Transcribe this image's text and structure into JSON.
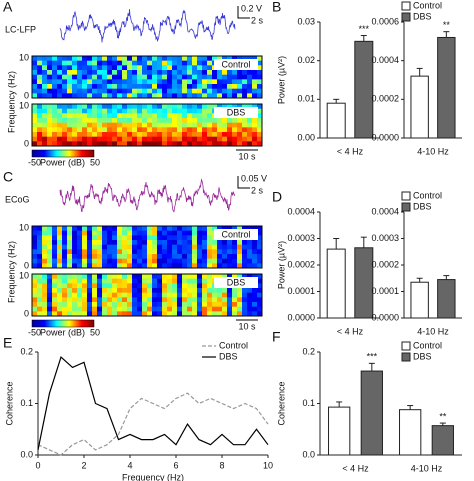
{
  "panel_a": {
    "label": "A",
    "trace_label": "LC-LFP",
    "scale_v": "0.2 V",
    "scale_t": "2 s",
    "ylabel": "Frequency (Hz)",
    "spectrograms": [
      {
        "label": "Control",
        "yticks": [
          "10",
          "0"
        ]
      },
      {
        "label": "DBS",
        "yticks": [
          "10",
          "0"
        ]
      }
    ],
    "colorbar": {
      "label": "Power (dB)",
      "min": "-50",
      "max": "50"
    },
    "time_scale": "10 s"
  },
  "panel_c": {
    "label": "C",
    "trace_label": "ECoG",
    "scale_v": "0.05 V",
    "scale_t": "2 s",
    "ylabel": "Frequency (Hz)",
    "spectrograms": [
      {
        "label": "Control",
        "yticks": [
          "10",
          "0"
        ]
      },
      {
        "label": "DBS",
        "yticks": [
          "10",
          "0"
        ]
      }
    ],
    "colorbar": {
      "label": "Power (dB)",
      "min": "-50",
      "max": "50"
    },
    "time_scale": "10 s"
  },
  "chart_data": [
    {
      "type": "bar",
      "panel": "B",
      "ylabel": "Power (µV²)",
      "categories": [
        "< 4 Hz"
      ],
      "series": [
        {
          "name": "Control",
          "color": "#ffffff",
          "values": [
            0.009
          ],
          "errors": [
            0.001
          ]
        },
        {
          "name": "DBS",
          "color": "#666666",
          "values": [
            0.025
          ],
          "errors": [
            0.0015
          ],
          "significance": [
            "***"
          ]
        }
      ],
      "ylim": [
        0,
        0.03
      ],
      "yticks": [
        {
          "value": 0,
          "label": "0.00"
        },
        0.01,
        0.02,
        0.03
      ]
    },
    {
      "type": "bar",
      "categories": [
        "4-10 Hz"
      ],
      "legend": "upper right",
      "series": [
        {
          "name": "Control",
          "color": "#ffffff",
          "values": [
            0.00032
          ],
          "errors": [
            4e-05
          ]
        },
        {
          "name": "DBS",
          "color": "#666666",
          "values": [
            0.00052
          ],
          "errors": [
            3e-05
          ],
          "significance": [
            "**"
          ]
        }
      ],
      "ylim": [
        0,
        0.0006
      ],
      "yticks": [
        {
          "value": 0,
          "label": "0.0000"
        },
        0.0002,
        0.0004,
        0.0006
      ]
    },
    {
      "type": "bar",
      "panel": "D",
      "ylabel": "Power (µV²)",
      "categories": [
        "< 4 Hz"
      ],
      "series": [
        {
          "name": "Control",
          "color": "#ffffff",
          "values": [
            0.00026
          ],
          "errors": [
            4e-05
          ]
        },
        {
          "name": "DBS",
          "color": "#666666",
          "values": [
            0.000265
          ],
          "errors": [
            4e-05
          ]
        }
      ],
      "ylim": [
        0,
        0.0004
      ],
      "yticks": [
        {
          "value": 0,
          "label": "0.0000"
        },
        0.0001,
        0.0002,
        0.0003,
        0.0004
      ]
    },
    {
      "type": "bar",
      "categories": [
        "4-10 Hz"
      ],
      "legend": "upper right",
      "series": [
        {
          "name": "Control",
          "color": "#ffffff",
          "values": [
            0.000135
          ],
          "errors": [
            1.5e-05
          ]
        },
        {
          "name": "DBS",
          "color": "#666666",
          "values": [
            0.000145
          ],
          "errors": [
            1.5e-05
          ]
        }
      ],
      "ylim": [
        0,
        0.0004
      ],
      "yticks": [
        {
          "value": 0,
          "label": "0.0000"
        },
        0.0001,
        0.0002,
        0.0003,
        0.0004
      ]
    },
    {
      "type": "line",
      "panel": "E",
      "xlabel": "Frequency (Hz)",
      "ylabel": "Coherence",
      "legend": "upper right",
      "x": [
        0,
        0.5,
        1,
        1.5,
        2,
        2.5,
        3,
        3.5,
        4,
        4.5,
        5,
        5.5,
        6,
        6.5,
        7,
        7.5,
        8,
        8.5,
        9,
        9.5,
        10
      ],
      "series": [
        {
          "name": "Control",
          "color": "#999999",
          "dashed": true,
          "values": [
            0.02,
            0.01,
            0.0,
            0.02,
            0.03,
            0.01,
            0.02,
            0.04,
            0.09,
            0.11,
            0.1,
            0.09,
            0.11,
            0.12,
            0.1,
            0.11,
            0.1,
            0.09,
            0.1,
            0.09,
            0.06
          ]
        },
        {
          "name": "DBS",
          "color": "#000000",
          "values": [
            0.01,
            0.12,
            0.19,
            0.17,
            0.18,
            0.1,
            0.09,
            0.03,
            0.04,
            0.03,
            0.03,
            0.04,
            0.02,
            0.06,
            0.03,
            0.02,
            0.04,
            0.02,
            0.02,
            0.05,
            0.02
          ]
        }
      ],
      "xlim": [
        0,
        10
      ],
      "xticks": [
        0,
        2,
        4,
        6,
        8,
        10
      ],
      "ylim": [
        0,
        0.2
      ],
      "yticks": [
        {
          "value": 0,
          "label": "0.0"
        },
        0.1,
        0.2
      ]
    },
    {
      "type": "bar",
      "panel": "F",
      "ylabel": "Coherence",
      "categories": [
        "< 4 Hz",
        "4-10 Hz"
      ],
      "legend": "upper right",
      "series": [
        {
          "name": "Control",
          "color": "#ffffff",
          "values": [
            0.093,
            0.088
          ],
          "errors": [
            0.01,
            0.008
          ]
        },
        {
          "name": "DBS",
          "color": "#666666",
          "values": [
            0.163,
            0.057
          ],
          "errors": [
            0.015,
            0.005
          ],
          "significance": [
            "***",
            "**"
          ]
        }
      ],
      "ylim": [
        0,
        0.2
      ],
      "yticks": [
        {
          "value": 0,
          "label": "0.0"
        },
        0.1,
        0.2
      ]
    }
  ]
}
